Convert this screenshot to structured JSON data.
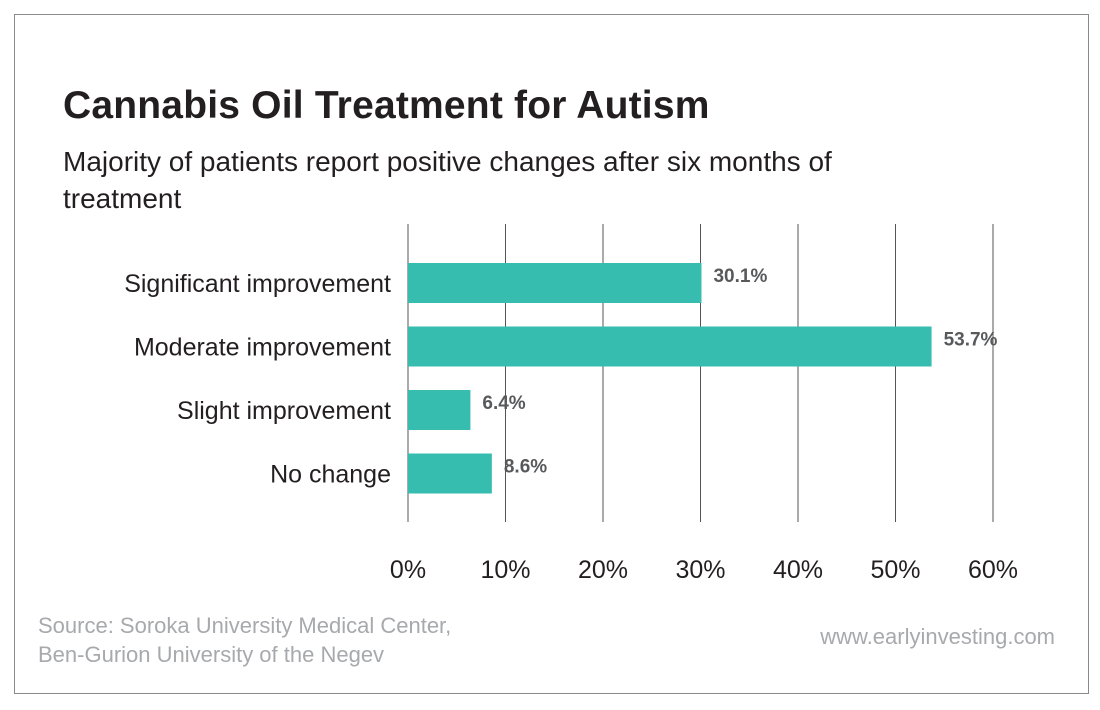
{
  "title": "Cannabis Oil Treatment for Autism",
  "subtitle": "Majority of patients report positive changes after six months of treatment",
  "source": {
    "line1": "Source: Soroka University Medical Center,",
    "line2": "Ben-Gurion University of the Negev"
  },
  "website": "www.earlyinvesting.com",
  "colors": {
    "bar": "#36bdb0",
    "grid": "#555555",
    "text": "#231f20",
    "value_label": "#58595b",
    "footer_text": "#a7a9ac"
  },
  "chart_data": {
    "type": "bar",
    "orientation": "horizontal",
    "categories": [
      "Significant improvement",
      "Moderate improvement",
      "Slight improvement",
      "No change"
    ],
    "values": [
      30.1,
      53.7,
      6.4,
      8.6
    ],
    "value_labels": [
      "30.1%",
      "53.7%",
      "6.4%",
      "8.6%"
    ],
    "xlim": [
      0,
      60
    ],
    "xticks": [
      0,
      10,
      20,
      30,
      40,
      50,
      60
    ],
    "xtick_labels": [
      "0%",
      "10%",
      "20%",
      "30%",
      "40%",
      "50%",
      "60%"
    ],
    "grid": true,
    "legend": "none"
  }
}
